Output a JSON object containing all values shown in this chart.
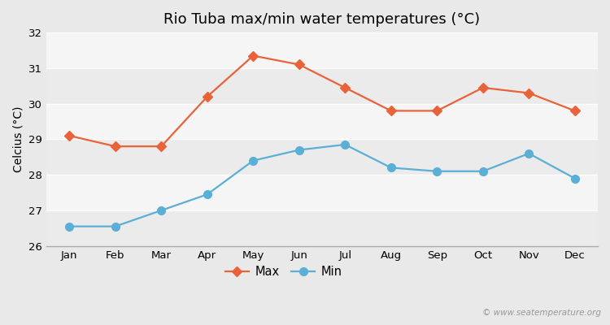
{
  "title": "Rio Tuba max/min water temperatures (°C)",
  "ylabel": "Celcius (°C)",
  "months": [
    "Jan",
    "Feb",
    "Mar",
    "Apr",
    "May",
    "Jun",
    "Jul",
    "Aug",
    "Sep",
    "Oct",
    "Nov",
    "Dec"
  ],
  "max_temps": [
    29.1,
    28.8,
    28.8,
    30.2,
    31.35,
    31.1,
    30.45,
    29.8,
    29.8,
    30.45,
    30.3,
    29.8
  ],
  "min_temps": [
    26.55,
    26.55,
    27.0,
    27.45,
    28.4,
    28.7,
    28.85,
    28.2,
    28.1,
    28.1,
    28.6,
    27.9
  ],
  "max_color": "#e8623a",
  "min_color": "#5bafd6",
  "fig_bg_color": "#e9e9e9",
  "plot_bg_color_light": "#f2f2f2",
  "plot_bg_color_dark": "#e5e5e5",
  "grid_color": "#ffffff",
  "ylim": [
    26,
    32
  ],
  "yticks": [
    26,
    27,
    28,
    29,
    30,
    31,
    32
  ],
  "title_fontsize": 13,
  "axis_label_fontsize": 10,
  "tick_fontsize": 9.5,
  "legend_fontsize": 10.5,
  "watermark": "© www.seatemperature.org",
  "max_marker": "D",
  "min_marker": "o",
  "linewidth": 1.6,
  "markersize_max": 6,
  "markersize_min": 7
}
